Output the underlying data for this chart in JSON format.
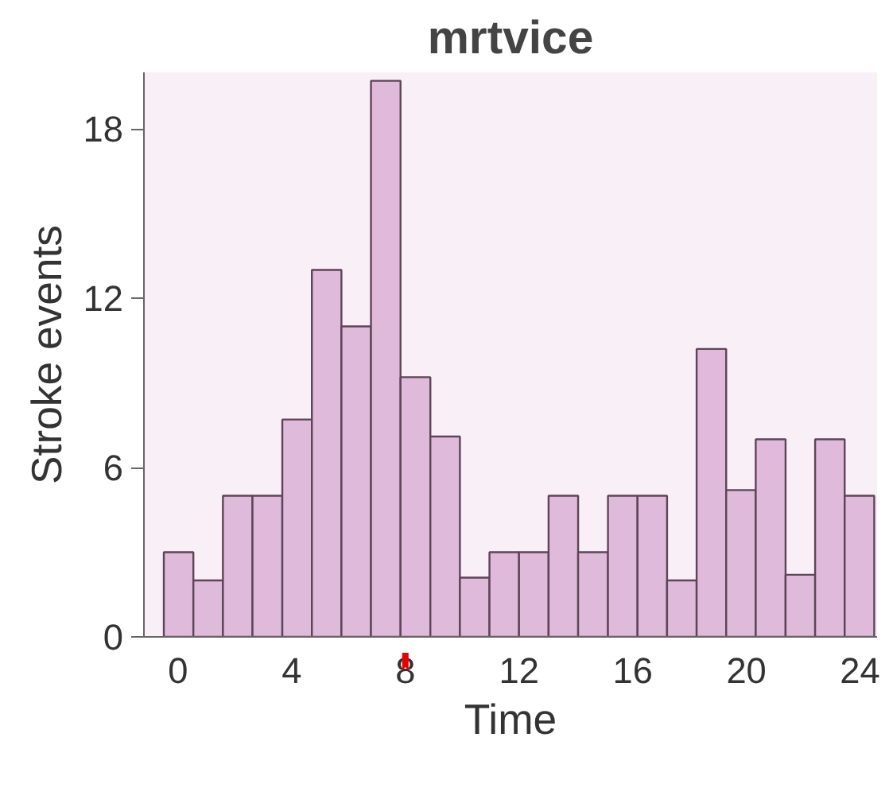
{
  "chart_data": {
    "type": "histogram",
    "title": "mrtvice",
    "xlabel": "Time",
    "ylabel": "Stroke events",
    "bins": [
      -0.5,
      0.54,
      1.58,
      2.62,
      3.67,
      4.71,
      5.75,
      6.79,
      7.83,
      8.88,
      9.92,
      10.96,
      12.0,
      13.04,
      14.08,
      15.13,
      16.17,
      17.21,
      18.25,
      19.29,
      20.33,
      21.38,
      22.42,
      23.46,
      24.5
    ],
    "values": [
      3,
      2,
      5,
      5,
      7.7,
      13,
      11,
      19.7,
      9.2,
      7.1,
      2.1,
      3,
      3,
      5,
      3,
      5,
      5,
      2,
      10.2,
      5.2,
      7,
      2.2,
      7,
      5
    ],
    "color": "#dfbadb",
    "xlim": [
      -1.2,
      24.6
    ],
    "ylim": [
      0,
      20
    ],
    "xticks": [
      0,
      4,
      8,
      12,
      16,
      20,
      24
    ],
    "yticks": [
      0,
      6,
      12,
      18
    ],
    "grid": false
  }
}
